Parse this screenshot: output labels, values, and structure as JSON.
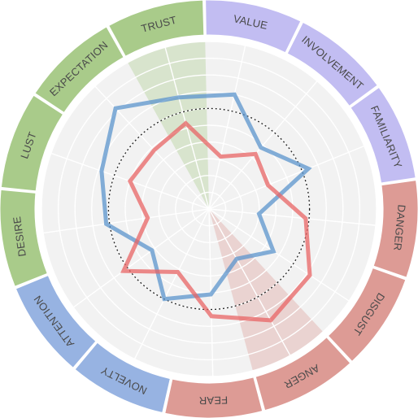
{
  "chart_data": {
    "type": "radar",
    "categories": [
      "EXPECTATION",
      "TRUST",
      "VALUE",
      "INVOLVEMENT",
      "FAMILIARITY",
      "DANGER",
      "DISGUST",
      "ANGER",
      "FEAR",
      "NOVELTY",
      "ATTENTION",
      "DESIRE",
      "LUST"
    ],
    "groups": [
      {
        "members": [
          "LUST",
          "EXPECTATION",
          "TRUST",
          "DESIRE"
        ],
        "color": "#a9cb8a"
      },
      {
        "members": [
          "VALUE",
          "INVOLVEMENT",
          "FAMILIARITY"
        ],
        "color": "#c2bdf2"
      },
      {
        "members": [
          "DANGER",
          "DISGUST",
          "ANGER",
          "FEAR"
        ],
        "color": "#dd9b95"
      },
      {
        "members": [
          "NOVELTY",
          "ATTENTION"
        ],
        "color": "#97b3e2"
      }
    ],
    "highlighted": [
      "TRUST",
      "ANGER"
    ],
    "r_range": [
      0,
      10
    ],
    "reference_circle": 6,
    "series": [
      {
        "color": "#5b94cc",
        "values": [
          8.2,
          6.9,
          7.0,
          4.8,
          6.4,
          3.0,
          4.6,
          3.4,
          5.1,
          6.0,
          4.2,
          6.2,
          6.8
        ]
      },
      {
        "color": "#e86464",
        "values": [
          4.8,
          5.3,
          3.2,
          4.3,
          3.8,
          5.8,
          7.2,
          7.6,
          6.4,
          4.2,
          6.3,
          3.7,
          5.0
        ]
      }
    ]
  }
}
